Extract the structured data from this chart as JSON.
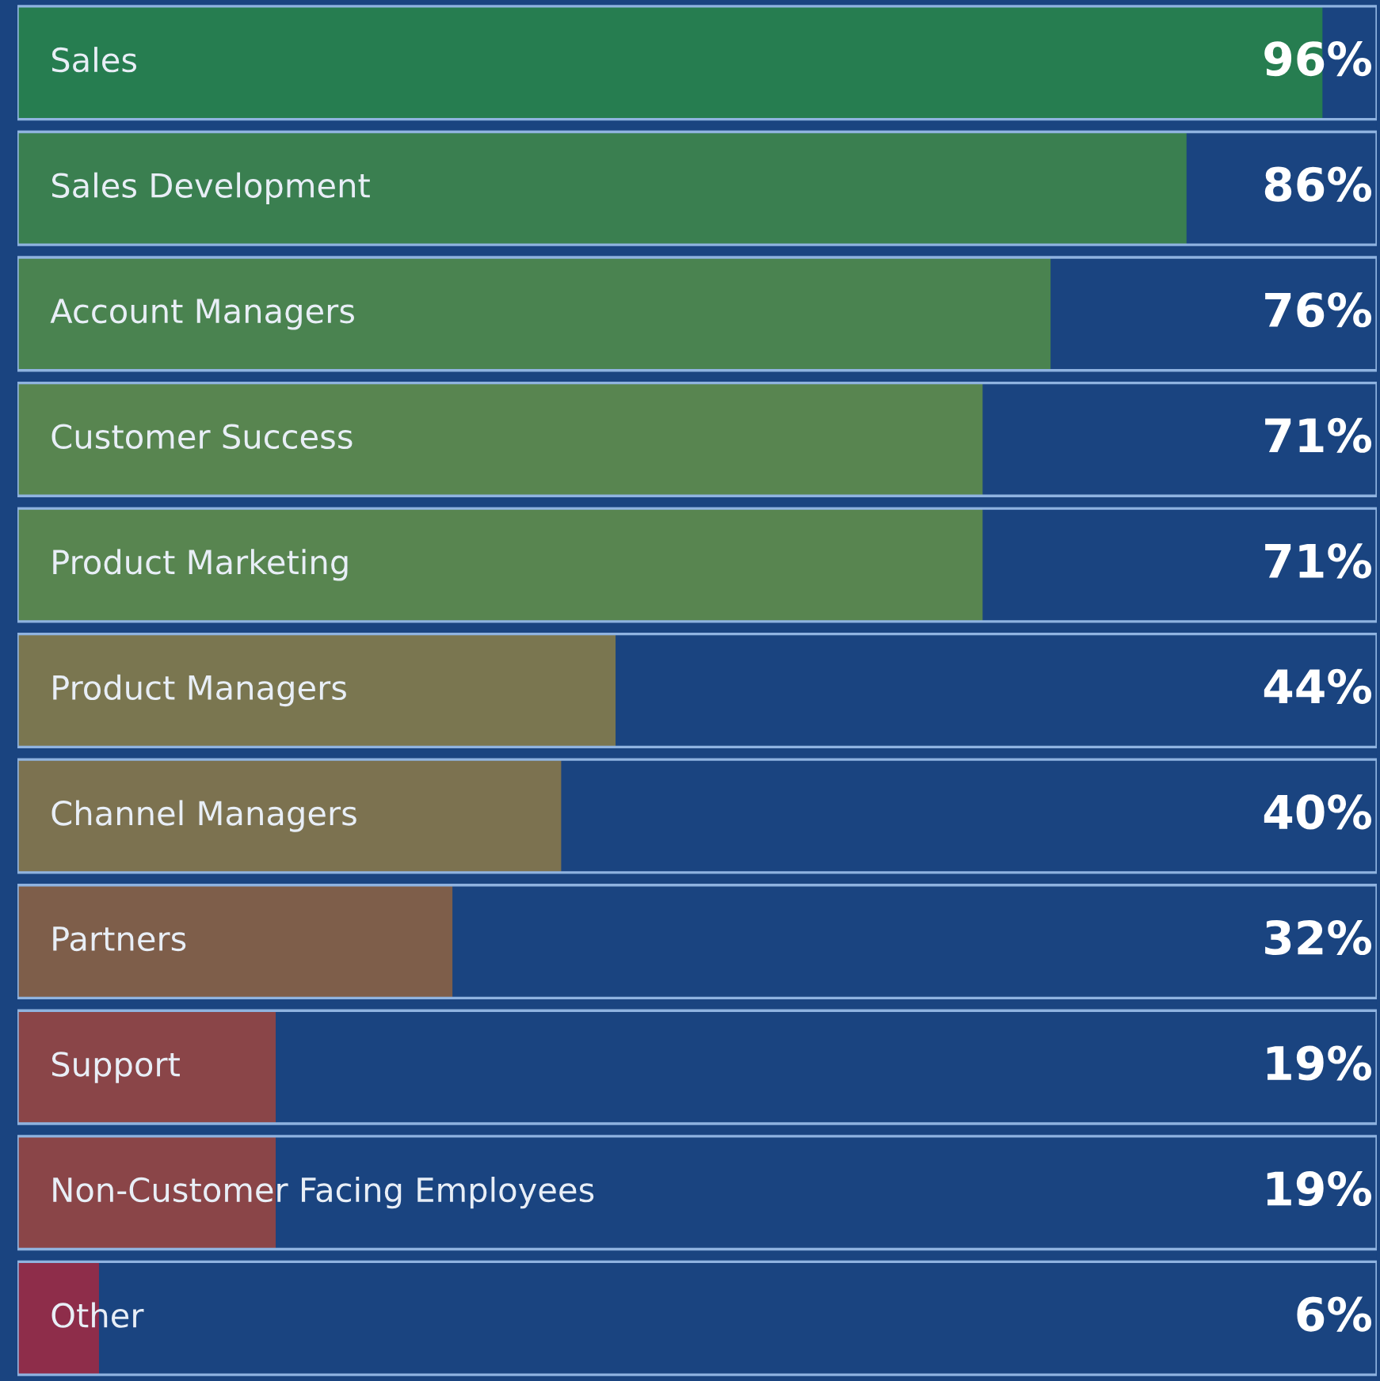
{
  "chart_data": {
    "type": "bar",
    "orientation": "horizontal",
    "categories": [
      "Sales",
      "Sales Development",
      "Account Managers",
      "Customer Success",
      "Product Marketing",
      "Product Managers",
      "Channel Managers",
      "Partners",
      "Support",
      "Non-Customer Facing Employees",
      "Other"
    ],
    "values": [
      96,
      86,
      76,
      71,
      71,
      44,
      40,
      32,
      19,
      19,
      6
    ],
    "colors": [
      "#267d50",
      "#3a7f50",
      "#4a8350",
      "#588550",
      "#588550",
      "#7a7650",
      "#7c7250",
      "#7e5e4a",
      "#8a4548",
      "#8a4548",
      "#8e2d4a"
    ],
    "value_labels": [
      "96%",
      "86%",
      "76%",
      "71%",
      "71%",
      "44%",
      "40%",
      "32%",
      "19%",
      "19%",
      "6%"
    ],
    "xlim": [
      0,
      100
    ],
    "tick_labels": false
  }
}
